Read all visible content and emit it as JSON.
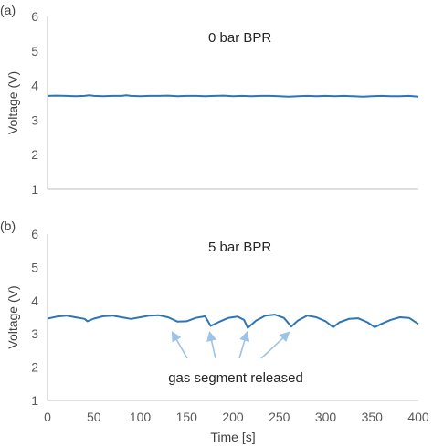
{
  "chart_data": [
    {
      "type": "line",
      "panel_label": "(a)",
      "annotation": "0 bar BPR",
      "xlabel": "",
      "ylabel": "Voltage (V)",
      "xlim": [
        0,
        400
      ],
      "ylim": [
        1,
        6
      ],
      "yticks": [
        "1",
        "2",
        "3",
        "4",
        "5",
        "6"
      ],
      "grid": false,
      "series": [
        {
          "color": "#2e75b6",
          "x": [
            0,
            10,
            20,
            30,
            40,
            45,
            50,
            60,
            70,
            80,
            85,
            90,
            100,
            110,
            120,
            130,
            140,
            150,
            160,
            170,
            180,
            190,
            200,
            210,
            220,
            230,
            240,
            250,
            260,
            270,
            280,
            290,
            300,
            310,
            320,
            330,
            340,
            350,
            360,
            370,
            380,
            390,
            400
          ],
          "y": [
            3.7,
            3.71,
            3.7,
            3.69,
            3.7,
            3.72,
            3.7,
            3.69,
            3.7,
            3.7,
            3.72,
            3.7,
            3.69,
            3.7,
            3.7,
            3.71,
            3.69,
            3.7,
            3.7,
            3.69,
            3.7,
            3.71,
            3.69,
            3.7,
            3.69,
            3.7,
            3.7,
            3.69,
            3.68,
            3.69,
            3.7,
            3.69,
            3.7,
            3.69,
            3.7,
            3.69,
            3.68,
            3.69,
            3.7,
            3.69,
            3.69,
            3.7,
            3.68
          ]
        }
      ]
    },
    {
      "type": "line",
      "panel_label": "(b)",
      "annotation": "5 bar BPR",
      "xlabel": "Time [s]",
      "ylabel": "Voltage (V)",
      "xlim": [
        0,
        400
      ],
      "ylim": [
        1,
        6
      ],
      "xticks": [
        "0",
        "50",
        "100",
        "150",
        "200",
        "250",
        "300",
        "350",
        "400"
      ],
      "yticks": [
        "1",
        "2",
        "3",
        "4",
        "5",
        "6"
      ],
      "grid": false,
      "callout": "gas segment released",
      "callout_targets_x": [
        135,
        175,
        215,
        260
      ],
      "series": [
        {
          "color": "#2e75b6",
          "x": [
            0,
            10,
            20,
            30,
            40,
            43,
            50,
            60,
            70,
            80,
            90,
            100,
            110,
            120,
            130,
            140,
            150,
            160,
            170,
            176,
            185,
            195,
            205,
            212,
            216,
            225,
            235,
            245,
            255,
            263,
            270,
            280,
            290,
            300,
            308,
            315,
            325,
            335,
            345,
            353,
            360,
            370,
            380,
            390,
            400
          ],
          "y": [
            3.46,
            3.52,
            3.55,
            3.5,
            3.45,
            3.38,
            3.46,
            3.53,
            3.55,
            3.5,
            3.45,
            3.5,
            3.55,
            3.56,
            3.5,
            3.37,
            3.38,
            3.48,
            3.53,
            3.24,
            3.36,
            3.48,
            3.52,
            3.42,
            3.18,
            3.4,
            3.55,
            3.58,
            3.48,
            3.22,
            3.4,
            3.55,
            3.5,
            3.38,
            3.2,
            3.35,
            3.45,
            3.47,
            3.35,
            3.2,
            3.3,
            3.42,
            3.5,
            3.48,
            3.3
          ]
        }
      ]
    }
  ]
}
